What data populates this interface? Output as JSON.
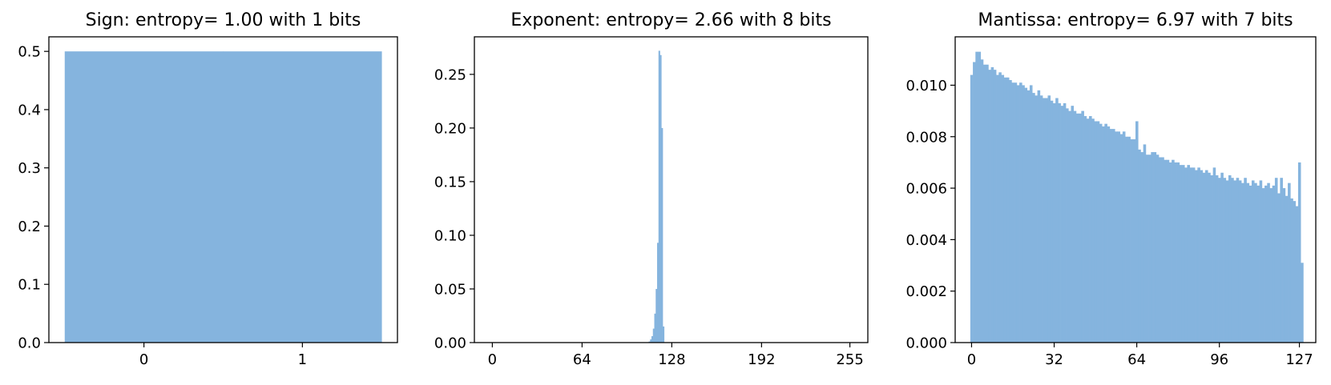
{
  "chart_data": [
    {
      "type": "bar",
      "title": "Sign: entropy= 1.00 with 1 bits",
      "xlabel": "",
      "ylabel": "",
      "x": [
        0,
        1
      ],
      "values": [
        0.5,
        0.5
      ],
      "bar_width": 1,
      "xlim": [
        -0.6,
        1.6
      ],
      "ylim": [
        0,
        0.525
      ],
      "xticks": [
        0,
        1
      ],
      "xtick_labels": [
        "0",
        "1"
      ],
      "yticks": [
        0,
        0.1,
        0.2,
        0.3,
        0.4,
        0.5
      ],
      "ytick_labels": [
        "0.0",
        "0.1",
        "0.2",
        "0.3",
        "0.4",
        "0.5"
      ],
      "color": "#85b4de",
      "grid": false,
      "legend": "none"
    },
    {
      "type": "bar",
      "title": "Exponent: entropy= 2.66 with 8 bits",
      "xlabel": "",
      "ylabel": "",
      "x": [
        112,
        113,
        114,
        115,
        116,
        117,
        118,
        119,
        120,
        121,
        122
      ],
      "values": [
        0.001,
        0.003,
        0.006,
        0.013,
        0.027,
        0.05,
        0.093,
        0.272,
        0.268,
        0.2,
        0.015
      ],
      "bar_width": 1,
      "xlim": [
        -12.8,
        267.8
      ],
      "ylim": [
        0,
        0.285
      ],
      "xticks": [
        0,
        64,
        128,
        192,
        255
      ],
      "xtick_labels": [
        "0",
        "64",
        "128",
        "192",
        "255"
      ],
      "yticks": [
        0,
        0.05,
        0.1,
        0.15,
        0.2,
        0.25
      ],
      "ytick_labels": [
        "0.00",
        "0.05",
        "0.10",
        "0.15",
        "0.20",
        "0.25"
      ],
      "color": "#85b4de",
      "grid": false,
      "legend": "none"
    },
    {
      "type": "bar",
      "title": "Mantissa: entropy= 6.97 with 7 bits",
      "xlabel": "",
      "ylabel": "",
      "x_start": 0,
      "values": [
        0.0104,
        0.0109,
        0.0113,
        0.0113,
        0.011,
        0.0108,
        0.0108,
        0.0106,
        0.0107,
        0.0106,
        0.0104,
        0.0105,
        0.0104,
        0.0103,
        0.0103,
        0.0102,
        0.0101,
        0.0101,
        0.01,
        0.0101,
        0.01,
        0.0099,
        0.0098,
        0.01,
        0.0097,
        0.0096,
        0.0098,
        0.0096,
        0.0095,
        0.0095,
        0.0096,
        0.0094,
        0.0093,
        0.0095,
        0.0093,
        0.0092,
        0.0093,
        0.0091,
        0.009,
        0.0092,
        0.009,
        0.0089,
        0.0089,
        0.009,
        0.0088,
        0.0087,
        0.0088,
        0.0087,
        0.0086,
        0.0086,
        0.0085,
        0.0084,
        0.0085,
        0.0084,
        0.0083,
        0.0083,
        0.0082,
        0.0082,
        0.0081,
        0.0082,
        0.008,
        0.008,
        0.0079,
        0.0079,
        0.0086,
        0.0075,
        0.0074,
        0.0077,
        0.0073,
        0.0073,
        0.0074,
        0.0074,
        0.0073,
        0.0072,
        0.0072,
        0.0071,
        0.0071,
        0.007,
        0.0071,
        0.007,
        0.007,
        0.0069,
        0.0069,
        0.0068,
        0.0069,
        0.0068,
        0.0068,
        0.0067,
        0.0068,
        0.0067,
        0.0066,
        0.0067,
        0.0066,
        0.0065,
        0.0068,
        0.0065,
        0.0064,
        0.0066,
        0.0064,
        0.0063,
        0.0065,
        0.0064,
        0.0063,
        0.0064,
        0.0063,
        0.0062,
        0.0064,
        0.0062,
        0.0061,
        0.0063,
        0.0062,
        0.0061,
        0.0063,
        0.006,
        0.0061,
        0.0062,
        0.006,
        0.0061,
        0.0064,
        0.0058,
        0.0064,
        0.006,
        0.0057,
        0.0062,
        0.0056,
        0.0055,
        0.0053,
        0.007,
        0.0031
      ],
      "bar_width": 1,
      "xlim": [
        -6.35,
        133.35
      ],
      "ylim": [
        0,
        0.01188
      ],
      "xticks": [
        0,
        32,
        64,
        96,
        127
      ],
      "xtick_labels": [
        "0",
        "32",
        "64",
        "96",
        "127"
      ],
      "yticks": [
        0,
        0.002,
        0.004,
        0.006,
        0.008,
        0.01
      ],
      "ytick_labels": [
        "0.000",
        "0.002",
        "0.004",
        "0.006",
        "0.008",
        "0.010"
      ],
      "color": "#85b4de",
      "grid": false,
      "legend": "none"
    }
  ]
}
